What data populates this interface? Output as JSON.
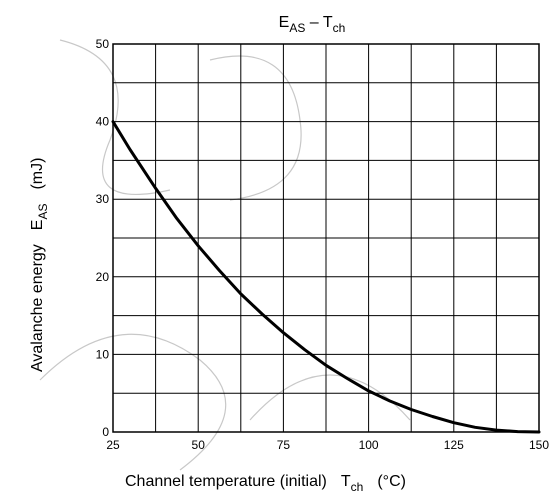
{
  "chart_data": {
    "type": "line",
    "title": {
      "main": "E",
      "main_sub": "AS",
      "sep": " – ",
      "second": "T",
      "second_sub": "ch"
    },
    "xlabel": {
      "text": "Channel temperature (initial)",
      "symbol": "T",
      "symbol_sub": "ch",
      "unit": "(°C)"
    },
    "ylabel": {
      "text": "Avalanche energy",
      "symbol": "E",
      "symbol_sub": "AS",
      "unit": "(mJ)"
    },
    "xlim": [
      25,
      150
    ],
    "ylim": [
      0,
      50
    ],
    "x_ticks": [
      "25",
      "50",
      "75",
      "100",
      "125",
      "150"
    ],
    "y_ticks": [
      "0",
      "10",
      "20",
      "30",
      "40",
      "50"
    ],
    "grid": true,
    "series": [
      {
        "x": [
          25,
          30,
          37.5,
          43.75,
          50,
          56.25,
          62.5,
          68.75,
          75,
          81.25,
          87.5,
          93.75,
          100,
          106.25,
          112.5,
          118.75,
          125,
          131.25,
          137.5,
          143.75,
          150
        ],
        "y": [
          40,
          36.4,
          31.4,
          27.5,
          24.0,
          20.8,
          17.8,
          15.2,
          12.8,
          10.6,
          8.6,
          6.9,
          5.3,
          4.0,
          2.9,
          2.0,
          1.2,
          0.6,
          0.25,
          0.05,
          0
        ]
      }
    ],
    "line_color": "#000000"
  }
}
